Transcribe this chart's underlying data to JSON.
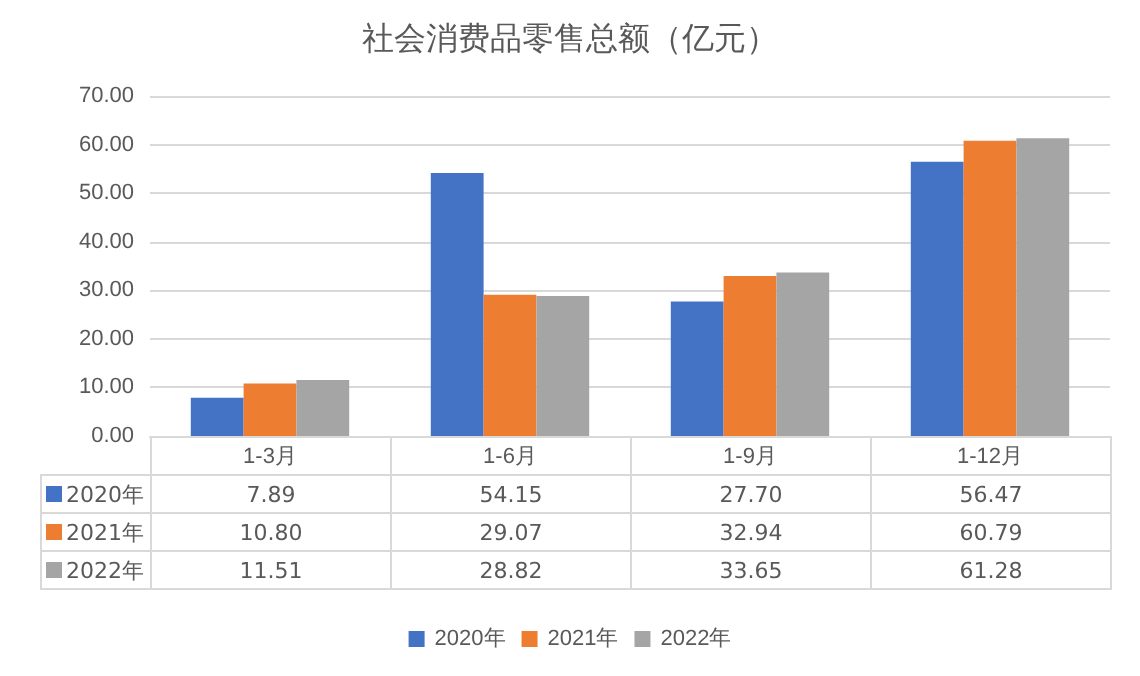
{
  "chart_data": {
    "type": "bar",
    "title": "社会消费品零售总额（亿元）",
    "categories": [
      "1-3月",
      "1-6月",
      "1-9月",
      "1-12月"
    ],
    "series": [
      {
        "name": "2020年",
        "color": "#4472c4",
        "values": [
          7.89,
          54.15,
          27.7,
          56.47
        ],
        "value_labels": [
          "7.89",
          "54.15",
          "27.70",
          "56.47"
        ]
      },
      {
        "name": "2021年",
        "color": "#ed7d31",
        "values": [
          10.8,
          29.07,
          32.94,
          60.79
        ],
        "value_labels": [
          "10.80",
          "29.07",
          "32.94",
          "60.79"
        ]
      },
      {
        "name": "2022年",
        "color": "#a5a5a5",
        "values": [
          11.51,
          28.82,
          33.65,
          61.28
        ],
        "value_labels": [
          "11.51",
          "28.82",
          "33.65",
          "61.28"
        ]
      }
    ],
    "ylim": [
      0,
      70
    ],
    "yticks": [
      {
        "value": 0,
        "label": "0.00"
      },
      {
        "value": 10,
        "label": "10.00"
      },
      {
        "value": 20,
        "label": "20.00"
      },
      {
        "value": 30,
        "label": "30.00"
      },
      {
        "value": 40,
        "label": "40.00"
      },
      {
        "value": 50,
        "label": "50.00"
      },
      {
        "value": 60,
        "label": "60.00"
      },
      {
        "value": 70,
        "label": "70.00"
      }
    ],
    "grid": "y",
    "legend": "bottom"
  }
}
